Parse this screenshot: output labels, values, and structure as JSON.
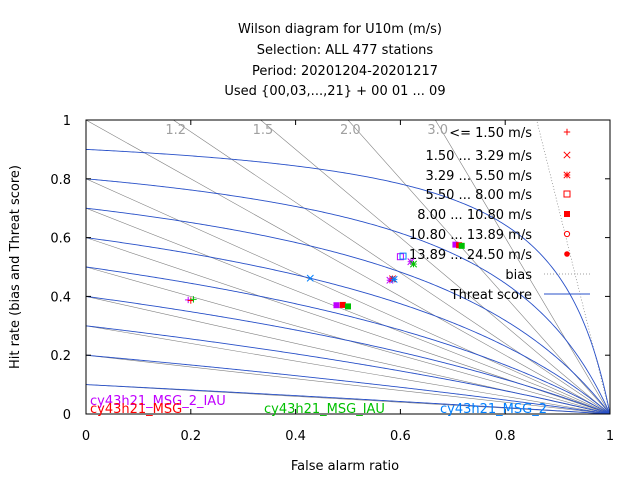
{
  "title_lines": [
    "Wilson diagram  for U10m (m/s)",
    "Selection: ALL    477 stations",
    "Period: 20201204-20201217",
    "Used {00,03,...,21} + 00 01 ... 09"
  ],
  "chart_data": {
    "type": "scatter",
    "xlabel": "False alarm ratio",
    "ylabel": "Hit rate (bias and Threat score)",
    "xlim": [
      0,
      1
    ],
    "ylim": [
      0,
      1
    ],
    "x_ticks": [
      "0",
      "0.2",
      "0.4",
      "0.6",
      "0.8",
      "1"
    ],
    "y_ticks": [
      "0",
      "0.2",
      "0.4",
      "0.6",
      "0.8",
      "1"
    ],
    "bias_values": [
      1.2,
      1.5,
      2.0,
      3.0
    ],
    "bias_labels": [
      "1.2",
      "1.5",
      "2.0",
      "3.0"
    ],
    "threat_scores": [
      0.1,
      0.2,
      0.3,
      0.4,
      0.5,
      0.6,
      0.7,
      0.8,
      0.9
    ],
    "legend": {
      "classes": [
        {
          "label": "<= 1.50 m/s",
          "marker": "plus"
        },
        {
          "label": "1.50 ... 3.29 m/s",
          "marker": "cross"
        },
        {
          "label": "3.29 ... 5.50 m/s",
          "marker": "star"
        },
        {
          "label": "5.50 ... 8.00 m/s",
          "marker": "open-square"
        },
        {
          "label": "8.00 ... 10.80 m/s",
          "marker": "filled-square"
        },
        {
          "label": "10.80 ... 13.89 m/s",
          "marker": "open-circle"
        },
        {
          "label": "13.89 ... 24.50 m/s",
          "marker": "filled-circle"
        }
      ],
      "bias_label": "bias",
      "threat_label": "Threat score",
      "marker_color": "#ff0000",
      "placement": "top-right"
    },
    "experiments": [
      {
        "name": "cy43h21_MSG_2_IAU",
        "color": "#c000ff"
      },
      {
        "name": "cy43h21_MSG",
        "color": "#ff0000"
      },
      {
        "name": "cy43h21_MSG_IAU",
        "color": "#00c000"
      },
      {
        "name": "cy43h21_MSG_2",
        "color": "#0080ff"
      }
    ],
    "points": [
      {
        "exp": 0,
        "cls": 0,
        "x": 0.195,
        "y": 0.388
      },
      {
        "exp": 1,
        "cls": 0,
        "x": 0.2,
        "y": 0.386
      },
      {
        "exp": 2,
        "cls": 0,
        "x": 0.205,
        "y": 0.39
      },
      {
        "exp": 3,
        "cls": 1,
        "x": 0.428,
        "y": 0.462
      },
      {
        "exp": 0,
        "cls": 2,
        "x": 0.58,
        "y": 0.455
      },
      {
        "exp": 1,
        "cls": 2,
        "x": 0.585,
        "y": 0.46
      },
      {
        "exp": 3,
        "cls": 2,
        "x": 0.588,
        "y": 0.458
      },
      {
        "exp": 0,
        "cls": 2,
        "x": 0.62,
        "y": 0.518
      },
      {
        "exp": 2,
        "cls": 2,
        "x": 0.625,
        "y": 0.51
      },
      {
        "exp": 0,
        "cls": 3,
        "x": 0.6,
        "y": 0.535
      },
      {
        "exp": 3,
        "cls": 3,
        "x": 0.605,
        "y": 0.537
      },
      {
        "exp": 0,
        "cls": 4,
        "x": 0.478,
        "y": 0.37
      },
      {
        "exp": 1,
        "cls": 4,
        "x": 0.49,
        "y": 0.371
      },
      {
        "exp": 2,
        "cls": 4,
        "x": 0.5,
        "y": 0.366
      },
      {
        "exp": 0,
        "cls": 4,
        "x": 0.705,
        "y": 0.576
      },
      {
        "exp": 1,
        "cls": 4,
        "x": 0.712,
        "y": 0.574
      },
      {
        "exp": 2,
        "cls": 4,
        "x": 0.717,
        "y": 0.572
      }
    ]
  }
}
